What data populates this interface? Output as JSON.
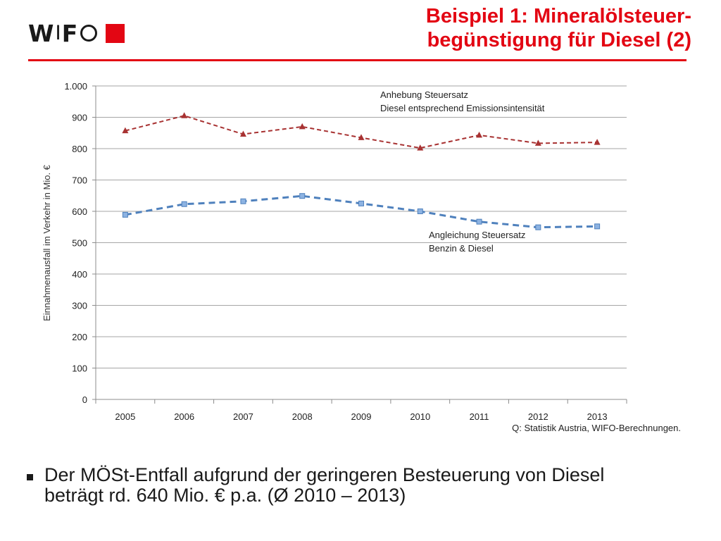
{
  "logo": {
    "letters_1": "W",
    "bar": "I",
    "letters_2": "F"
  },
  "title": {
    "line1": "Beispiel 1: Mineralölsteuer-",
    "line2": "begünstigung für Diesel (2)"
  },
  "source_note": "Q: Statistik Austria, WIFO-Berechnungen.",
  "bullet": {
    "line1": "Der MÖSt-Entfall aufgrund der geringeren Besteuerung von Diesel",
    "line2": "beträgt rd. 640 Mio. € p.a. (Ø 2010 – 2013)"
  },
  "colors": {
    "brand_red": "#e30613",
    "series_dark_red": "#a83232",
    "series_blue": "#4f81bd",
    "grid": "#a6a6a6"
  },
  "chart_data": {
    "type": "line",
    "ylabel": "Einnahmenausfall im Verkehr  in Mio. €",
    "xlabel": "",
    "ylim": [
      0,
      1000
    ],
    "yticks": [
      0,
      100,
      200,
      300,
      400,
      500,
      600,
      700,
      800,
      900,
      1000
    ],
    "ytick_labels": [
      "0",
      "100",
      "200",
      "300",
      "400",
      "500",
      "600",
      "700",
      "800",
      "900",
      "1.000"
    ],
    "grid": true,
    "categories": [
      "2005",
      "2006",
      "2007",
      "2008",
      "2009",
      "2010",
      "2011",
      "2012",
      "2013"
    ],
    "series": [
      {
        "annotation": [
          "Anhebung Steuersatz",
          "Diesel entsprechend Emissionsintensität"
        ],
        "marker": "triangle",
        "line_style": "dashed",
        "color": "#a83232",
        "values": [
          857,
          905,
          846,
          870,
          835,
          802,
          843,
          817,
          820
        ]
      },
      {
        "annotation": [
          "Angleichung Steuersatz",
          "Benzin & Diesel"
        ],
        "marker": "square",
        "line_style": "dashed",
        "color": "#4f81bd",
        "values": [
          589,
          623,
          632,
          649,
          625,
          600,
          567,
          549,
          552
        ]
      }
    ]
  }
}
